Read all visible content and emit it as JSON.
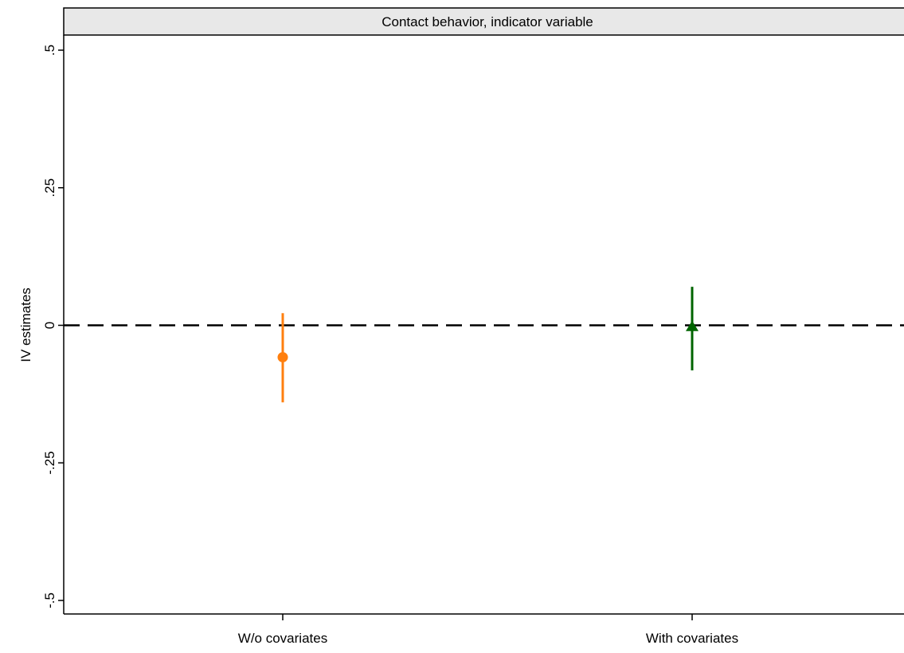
{
  "chart_data": {
    "type": "scatter",
    "title": "Contact behavior, indicator variable",
    "ylabel": "IV estimates",
    "xlabel": "",
    "categories": [
      "W/o covariates",
      "With covariates"
    ],
    "ylim": [
      -0.5,
      0.5
    ],
    "yticks": [
      {
        "value": 0.5,
        "label": ".5"
      },
      {
        "value": 0.25,
        "label": ".25"
      },
      {
        "value": 0,
        "label": "0"
      },
      {
        "value": -0.25,
        "label": "-.25"
      },
      {
        "value": -0.5,
        "label": "-.5"
      }
    ],
    "reference_line": 0,
    "series": [
      {
        "category": "W/o covariates",
        "estimate": -0.058,
        "ci_low": -0.14,
        "ci_high": 0.022,
        "marker": "circle",
        "color": "#ff7f0e"
      },
      {
        "category": "With covariates",
        "estimate": -0.003,
        "ci_low": -0.082,
        "ci_high": 0.07,
        "marker": "triangle",
        "color": "#006400"
      }
    ],
    "grid": false,
    "legend": "none"
  }
}
